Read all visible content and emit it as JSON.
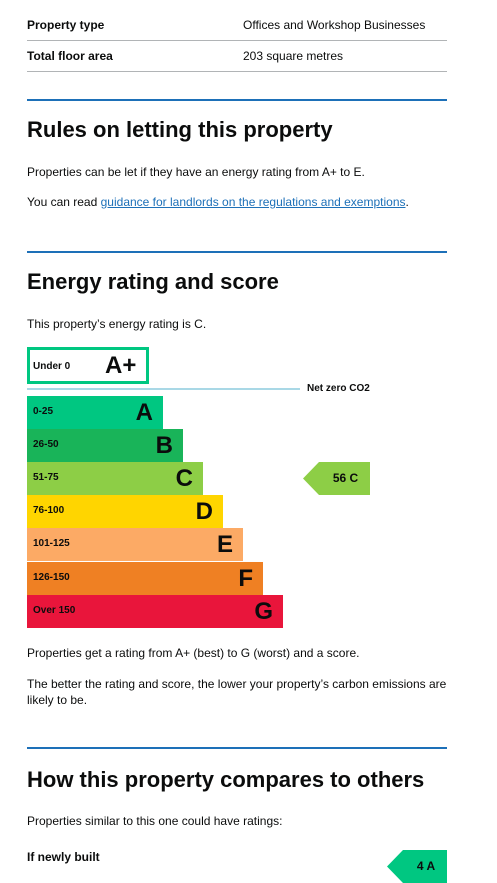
{
  "summary": [
    {
      "label": "Property type",
      "value": "Offices and Workshop Businesses"
    },
    {
      "label": "Total floor area",
      "value": "203 square metres"
    }
  ],
  "sections": [
    {
      "title": "Rules on letting this property",
      "paragraphs": [
        "Properties can be let if they have an energy rating from A+ to E."
      ],
      "link_paragraph": {
        "before": "You can read ",
        "link": "guidance for landlords on the regulations and exemptions",
        "after": "."
      }
    },
    {
      "title": "Energy rating and score",
      "intro": "This property’s energy rating is C.",
      "rating_scale": {
        "top": {
          "range": "Under 0",
          "letter": "A+"
        },
        "net_zero_label": "Net zero CO2",
        "bands": [
          {
            "range": "0-25",
            "letter": "A"
          },
          {
            "range": "26-50",
            "letter": "B"
          },
          {
            "range": "51-75",
            "letter": "C"
          },
          {
            "range": "76-100",
            "letter": "D"
          },
          {
            "range": "101-125",
            "letter": "E"
          },
          {
            "range": "126-150",
            "letter": "F"
          },
          {
            "range": "Over 150",
            "letter": "G"
          }
        ],
        "current": "56 C"
      },
      "paragraphs": [
        "Properties get a rating from A+ (best) to G (worst) and a score.",
        "The better the rating and score, the lower your property’s carbon emissions are likely to be."
      ]
    },
    {
      "title": "How this property compares to others",
      "intro": "Properties similar to this one could have ratings:",
      "comparisons": [
        {
          "label": "If newly built",
          "rating": "4 A"
        }
      ]
    }
  ]
}
